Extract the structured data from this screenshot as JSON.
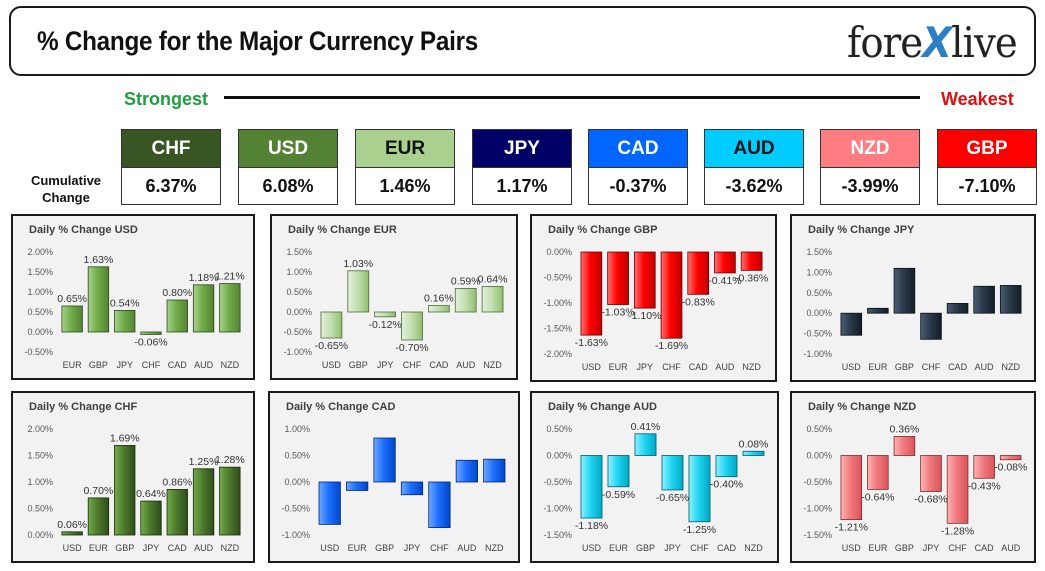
{
  "header": {
    "title": "% Change for the Major Currency Pairs",
    "brand_part1": "fore",
    "brand_x": "X",
    "brand_part2": "live"
  },
  "strength": {
    "strongest": "Strongest",
    "weakest": "Weakest",
    "row_label": "Cumulative Change"
  },
  "currencies": [
    {
      "code": "CHF",
      "value": "6.37%",
      "color": "#375623",
      "text_color": "#ffffff"
    },
    {
      "code": "USD",
      "value": "6.08%",
      "color": "#548235",
      "text_color": "#ffffff"
    },
    {
      "code": "EUR",
      "value": "1.46%",
      "color": "#a9d08e",
      "text_color": "#111111"
    },
    {
      "code": "JPY",
      "value": "1.17%",
      "color": "#000066",
      "text_color": "#ffffff"
    },
    {
      "code": "CAD",
      "value": "-0.37%",
      "color": "#0066ff",
      "text_color": "#ffffff"
    },
    {
      "code": "AUD",
      "value": "-3.62%",
      "color": "#00ccff",
      "text_color": "#111111"
    },
    {
      "code": "NZD",
      "value": "-3.99%",
      "color": "#ff7c80",
      "text_color": "#ffffff"
    },
    {
      "code": "GBP",
      "value": "-7.10%",
      "color": "#ff0000",
      "text_color": "#ffffff"
    }
  ],
  "chart_data": [
    {
      "type": "bar",
      "title": "Daily % Change USD",
      "categories": [
        "EUR",
        "GBP",
        "JPY",
        "CHF",
        "CAD",
        "AUD",
        "NZD"
      ],
      "values": [
        0.65,
        1.63,
        0.54,
        -0.06,
        0.8,
        1.18,
        1.21
      ],
      "labels": [
        "0.65%",
        "1.63%",
        "0.54%",
        "-0.06%",
        "0.80%",
        "1.18%",
        "1.21%"
      ],
      "ylim": [
        -0.5,
        2.0
      ],
      "yticks": [
        "2.00%",
        "1.50%",
        "1.00%",
        "0.50%",
        "0.00%",
        "-0.50%"
      ],
      "show_labels": true
    },
    {
      "type": "bar",
      "title": "Daily % Change EUR",
      "categories": [
        "USD",
        "GBP",
        "JPY",
        "CHF",
        "CAD",
        "AUD",
        "NZD"
      ],
      "values": [
        -0.65,
        1.03,
        -0.12,
        -0.7,
        0.16,
        0.59,
        0.64
      ],
      "labels": [
        "-0.65%",
        "1.03%",
        "-0.12%",
        "-0.70%",
        "0.16%",
        "0.59%",
        "0.64%"
      ],
      "ylim": [
        -1.0,
        1.5
      ],
      "yticks": [
        "1.50%",
        "1.00%",
        "0.50%",
        "0.00%",
        "-0.50%",
        "-1.00%"
      ],
      "show_labels": true
    },
    {
      "type": "bar",
      "title": "Daily % Change GBP",
      "categories": [
        "USD",
        "EUR",
        "JPY",
        "CHF",
        "CAD",
        "AUD",
        "NZD"
      ],
      "values": [
        -1.63,
        -1.03,
        -1.1,
        -1.69,
        -0.83,
        -0.41,
        -0.36
      ],
      "labels": [
        "-1.63%",
        "-1.03%",
        "-1.10%",
        "-1.69%",
        "-0.83%",
        "-0.41%",
        "-0.36%"
      ],
      "ylim": [
        -2.0,
        0.0
      ],
      "yticks": [
        "0.00%",
        "-0.50%",
        "-1.00%",
        "-1.50%",
        "-2.00%"
      ],
      "show_labels": true
    },
    {
      "type": "bar",
      "title": "Daily % Change JPY",
      "categories": [
        "USD",
        "EUR",
        "GBP",
        "CHF",
        "CAD",
        "AUD",
        "NZD"
      ],
      "values": [
        -0.54,
        0.12,
        1.1,
        -0.64,
        0.24,
        0.66,
        0.68
      ],
      "labels": [],
      "ylim": [
        -1.0,
        1.5
      ],
      "yticks": [
        "1.50%",
        "1.00%",
        "0.50%",
        "0.00%",
        "-0.50%",
        "-1.00%"
      ],
      "show_labels": false
    },
    {
      "type": "bar",
      "title": "Daily % Change CHF",
      "categories": [
        "USD",
        "EUR",
        "GBP",
        "JPY",
        "CAD",
        "AUD",
        "NZD"
      ],
      "values": [
        0.06,
        0.7,
        1.69,
        0.64,
        0.86,
        1.25,
        1.28
      ],
      "labels": [
        "0.06%",
        "0.70%",
        "1.69%",
        "0.64%",
        "0.86%",
        "1.25%",
        "1.28%"
      ],
      "ylim": [
        0.0,
        2.0
      ],
      "yticks": [
        "2.00%",
        "1.50%",
        "1.00%",
        "0.50%",
        "0.00%"
      ],
      "show_labels": true
    },
    {
      "type": "bar",
      "title": "Daily % Change CAD",
      "categories": [
        "USD",
        "EUR",
        "GBP",
        "JPY",
        "CHF",
        "AUD",
        "NZD"
      ],
      "values": [
        -0.8,
        -0.16,
        0.83,
        -0.24,
        -0.86,
        0.41,
        0.43
      ],
      "labels": [],
      "ylim": [
        -1.0,
        1.0
      ],
      "yticks": [
        "1.00%",
        "0.50%",
        "0.00%",
        "-0.50%",
        "-1.00%"
      ],
      "show_labels": false
    },
    {
      "type": "bar",
      "title": "Daily % Change AUD",
      "categories": [
        "USD",
        "EUR",
        "GBP",
        "JPY",
        "CHF",
        "CAD",
        "NZD"
      ],
      "values": [
        -1.18,
        -0.59,
        0.41,
        -0.65,
        -1.25,
        -0.4,
        0.08
      ],
      "labels": [
        "-1.18%",
        "-0.59%",
        "0.41%",
        "-0.65%",
        "-1.25%",
        "-0.40%",
        "0.08%"
      ],
      "ylim": [
        -1.5,
        0.5
      ],
      "yticks": [
        "0.50%",
        "0.00%",
        "-0.50%",
        "-1.00%",
        "-1.50%"
      ],
      "show_labels": true
    },
    {
      "type": "bar",
      "title": "Daily % Change NZD",
      "categories": [
        "USD",
        "EUR",
        "GBP",
        "JPY",
        "CHF",
        "CAD",
        "AUD"
      ],
      "values": [
        -1.21,
        -0.64,
        0.36,
        -0.68,
        -1.28,
        -0.43,
        -0.08
      ],
      "labels": [
        "-1.21%",
        "-0.64%",
        "0.36%",
        "-0.68%",
        "-1.28%",
        "-0.43%",
        "-0.08%"
      ],
      "ylim": [
        -1.5,
        0.5
      ],
      "yticks": [
        "0.50%",
        "0.00%",
        "-0.50%",
        "-1.00%",
        "-1.50%"
      ],
      "show_labels": true
    }
  ],
  "chart_colors": [
    {
      "name": "USD",
      "light": "#a9d18e",
      "mid": "#70ad47",
      "dark": "#548235"
    },
    {
      "name": "EUR",
      "light": "#e2f0d9",
      "mid": "#c5e0b4",
      "dark": "#8fbf6e"
    },
    {
      "name": "GBP",
      "light": "#ff7070",
      "mid": "#ff0000",
      "dark": "#c00000"
    },
    {
      "name": "JPY",
      "light": "#4a5d73",
      "mid": "#2b3a4a",
      "dark": "#141d27"
    },
    {
      "name": "CHF",
      "light": "#70ad47",
      "mid": "#4e7a2e",
      "dark": "#2f4d1a"
    },
    {
      "name": "CAD",
      "light": "#6ea8ff",
      "mid": "#1f6fff",
      "dark": "#0046c8"
    },
    {
      "name": "AUD",
      "light": "#8ff0ff",
      "mid": "#21d5f2",
      "dark": "#00a8c4"
    },
    {
      "name": "NZD",
      "light": "#ffb3b5",
      "mid": "#f07a7d",
      "dark": "#d9545a"
    }
  ]
}
